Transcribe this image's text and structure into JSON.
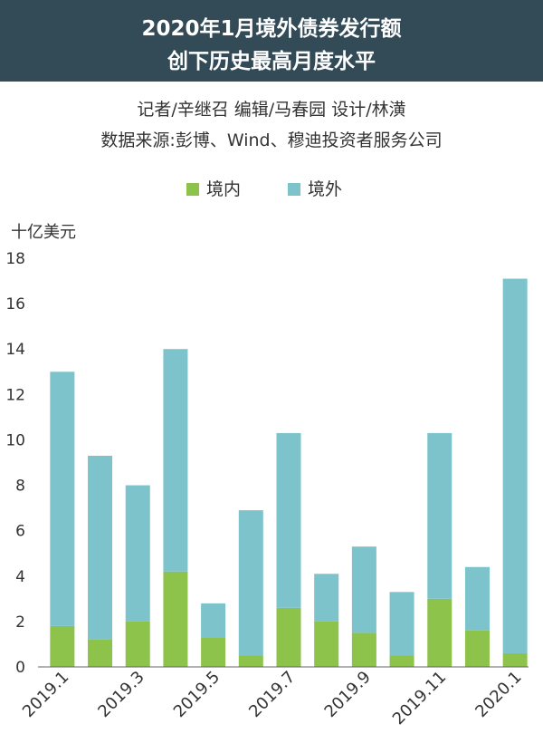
{
  "header": {
    "title_line1": "2020年1月境外债券发行额",
    "title_line2": "创下历史最高月度水平"
  },
  "credits": "记者/辛继召  编辑/马春园  设计/林潢",
  "source": "数据来源:彭博、Wind、穆迪投资者服务公司",
  "colors": {
    "domestic": "#8dc34a",
    "offshore": "#7cc3cc",
    "header_bg": "#334a57"
  },
  "chart_data": {
    "type": "bar",
    "stacked": true,
    "ylabel": "十亿美元",
    "ylim": [
      0,
      18
    ],
    "yticks": [
      "0",
      "2",
      "4",
      "6",
      "8",
      "10",
      "12",
      "14",
      "16",
      "18"
    ],
    "categories": [
      "2019.1",
      "2019.2",
      "2019.3",
      "2019.4",
      "2019.5",
      "2019.6",
      "2019.7",
      "2019.8",
      "2019.9",
      "2019.10",
      "2019.11",
      "2019.12",
      "2020.1"
    ],
    "xtick_labels": [
      "2019.1",
      "",
      "2019.3",
      "",
      "2019.5",
      "",
      "2019.7",
      "",
      "2019.9",
      "",
      "2019.11",
      "",
      "2020.1"
    ],
    "legend_position": "top-center",
    "grid": false,
    "series": [
      {
        "name": "境内",
        "values": [
          1.8,
          1.2,
          2.0,
          4.2,
          1.3,
          0.5,
          2.6,
          2.0,
          1.5,
          0.5,
          3.0,
          1.6,
          0.6
        ]
      },
      {
        "name": "境外",
        "values": [
          11.2,
          8.1,
          6.0,
          9.8,
          1.5,
          6.4,
          7.7,
          2.1,
          3.8,
          2.8,
          7.3,
          2.8,
          16.5
        ]
      }
    ]
  }
}
